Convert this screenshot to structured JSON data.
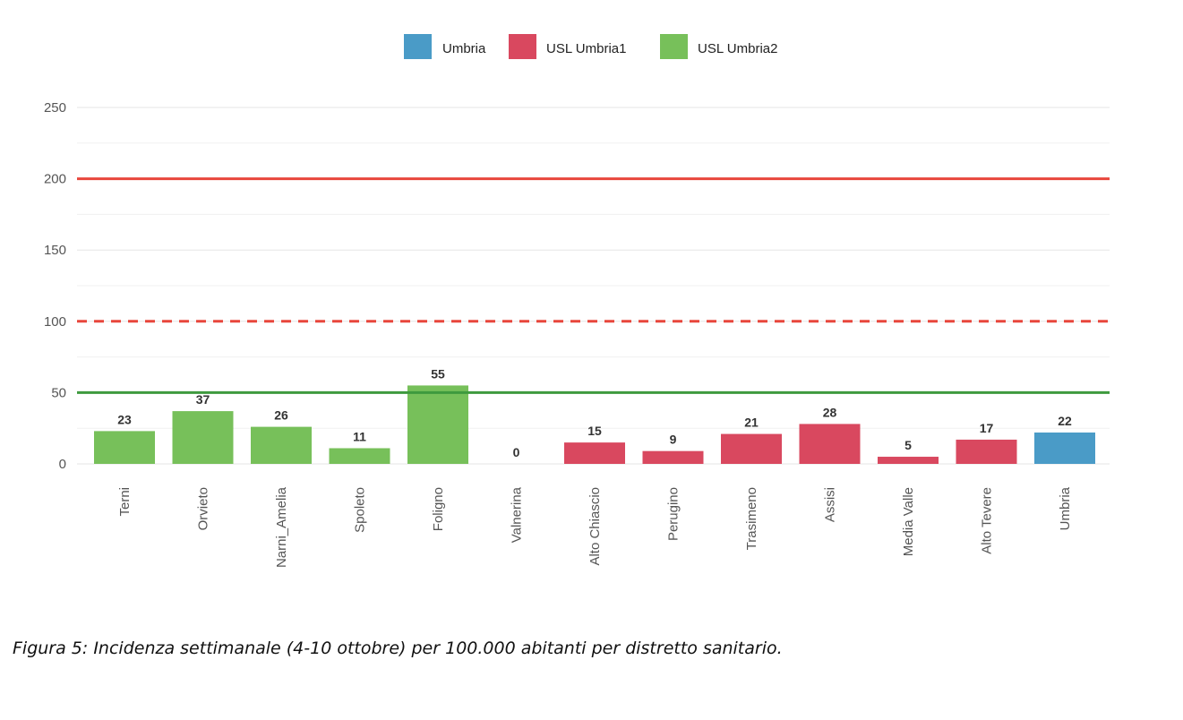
{
  "caption": "Figura 5: Incidenza settimanale (4-10 ottobre) per 100.000 abitanti per distretto sanitario.",
  "chart_data": {
    "type": "bar",
    "title": "",
    "xlabel": "",
    "ylabel": "",
    "ylim": [
      0,
      250
    ],
    "yticks": [
      0,
      50,
      100,
      150,
      200,
      250
    ],
    "grid": true,
    "legend_position": "top",
    "legend": [
      {
        "name": "Umbria",
        "color": "#4A9BC7"
      },
      {
        "name": "USL Umbria1",
        "color": "#D9485F"
      },
      {
        "name": "USL Umbria2",
        "color": "#77C05A"
      }
    ],
    "categories": [
      "Terni",
      "Orvieto",
      "Narni_Amelia",
      "Spoleto",
      "Foligno",
      "Valnerina",
      "Alto Chiascio",
      "Perugino",
      "Trasimeno",
      "Assisi",
      "Media Valle",
      "Alto Tevere",
      "Umbria"
    ],
    "values": [
      23,
      37,
      26,
      11,
      55,
      0,
      15,
      9,
      21,
      28,
      5,
      17,
      22
    ],
    "groups": [
      "USL Umbria2",
      "USL Umbria2",
      "USL Umbria2",
      "USL Umbria2",
      "USL Umbria2",
      "USL Umbria2",
      "USL Umbria1",
      "USL Umbria1",
      "USL Umbria1",
      "USL Umbria1",
      "USL Umbria1",
      "USL Umbria1",
      "Umbria"
    ],
    "reference_lines": [
      {
        "value": 200,
        "color": "#E8463C",
        "style": "solid"
      },
      {
        "value": 100,
        "color": "#E8463C",
        "style": "dashed"
      },
      {
        "value": 50,
        "color": "#3E9A3E",
        "style": "solid"
      }
    ]
  }
}
